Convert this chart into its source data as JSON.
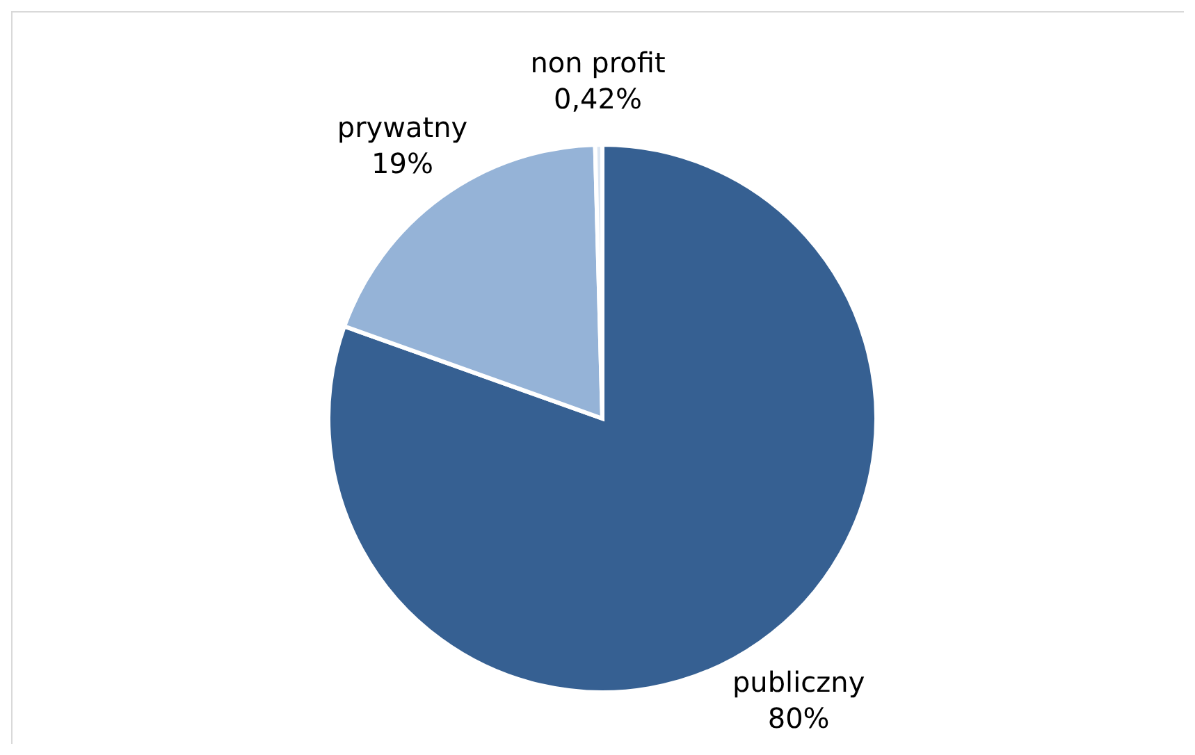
{
  "chart_data": {
    "type": "pie",
    "categories": [
      "publiczny",
      "prywatny",
      "non profit"
    ],
    "values": [
      80,
      19,
      0.42
    ],
    "value_labels": [
      "80%",
      "19%",
      "0,42%"
    ],
    "colors": [
      "#366092",
      "#95b3d7",
      "#dce6f2"
    ],
    "legend": false
  }
}
